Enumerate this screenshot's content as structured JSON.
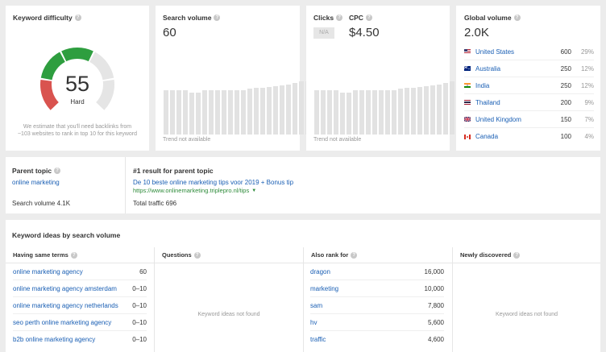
{
  "kd": {
    "title": "Keyword difficulty",
    "score": "55",
    "score_value": 55,
    "label": "Hard",
    "note": "We estimate that you'll need backlinks from ~103 websites to rank in top 10 for this keyword"
  },
  "sv": {
    "title": "Search volume",
    "value": "60",
    "trend_note": "Trend not available"
  },
  "clicks": {
    "title": "Clicks",
    "value": "N/A"
  },
  "cpc": {
    "title": "CPC",
    "value": "$4.50",
    "trend_note": "Trend not available"
  },
  "gv": {
    "title": "Global volume",
    "value": "2.0K",
    "rows": [
      {
        "country": "United States",
        "volume": "600",
        "pct": "29%",
        "flag": "us-flag"
      },
      {
        "country": "Australia",
        "volume": "250",
        "pct": "12%",
        "flag": "au-flag"
      },
      {
        "country": "India",
        "volume": "250",
        "pct": "12%",
        "flag": "in-flag"
      },
      {
        "country": "Thailand",
        "volume": "200",
        "pct": "9%",
        "flag": "th-flag"
      },
      {
        "country": "United Kingdom",
        "volume": "150",
        "pct": "7%",
        "flag": "uk-flag"
      },
      {
        "country": "Canada",
        "volume": "100",
        "pct": "4%",
        "flag": "ca-flag"
      }
    ]
  },
  "parent": {
    "title": "Parent topic",
    "topic": "online marketing",
    "search_volume": "Search volume 4.1K",
    "result_title": "#1 result for parent topic",
    "result_link": "De 10 beste online marketing tips voor 2019 + Bonus tip",
    "result_url": "https://www.onlinemarketing.triplepro.nl/tips",
    "total_traffic": "Total traffic 696"
  },
  "ideas": {
    "title": "Keyword ideas by search volume",
    "columns": {
      "same_terms": "Having same terms",
      "questions": "Questions",
      "also_rank": "Also rank for",
      "newly": "Newly discovered"
    },
    "same_terms": [
      {
        "term": "online marketing agency",
        "vol": "60"
      },
      {
        "term": "online marketing agency amsterdam",
        "vol": "0–10"
      },
      {
        "term": "online marketing agency netherlands",
        "vol": "0–10"
      },
      {
        "term": "seo perth online marketing agency",
        "vol": "0–10"
      },
      {
        "term": "b2b online marketing agency",
        "vol": "0–10"
      }
    ],
    "also_rank": [
      {
        "term": "dragon",
        "vol": "16,000"
      },
      {
        "term": "marketing",
        "vol": "10,000"
      },
      {
        "term": "sam",
        "vol": "7,800"
      },
      {
        "term": "hv",
        "vol": "5,600"
      },
      {
        "term": "traffic",
        "vol": "4,600"
      }
    ],
    "not_found": "Keyword ideas not found"
  },
  "colors": {
    "link": "#1a5fb4",
    "gauge_red": "#d9534f",
    "gauge_green": "#2e9e3f",
    "gauge_yellow": "#d6c01a",
    "gauge_gray": "#e5e5e5"
  }
}
